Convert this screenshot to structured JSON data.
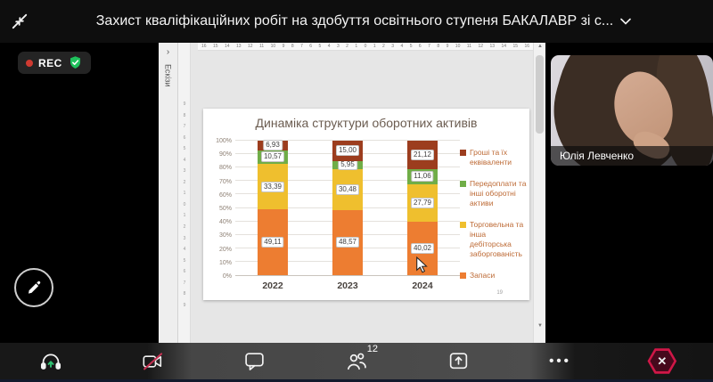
{
  "meeting": {
    "title": "Захист кваліфікаційних робіт на здобуття освітнього ступеня БАКАЛАВР зі с...",
    "rec_label": "REC",
    "participants_count": "12"
  },
  "webcam": {
    "participant_name": "Юлія Левченко"
  },
  "shared_screen": {
    "thumbnails_label": "Ескізи",
    "slide_page_number": "19",
    "ruler_h": [
      "16",
      "15",
      "14",
      "13",
      "12",
      "11",
      "10",
      "9",
      "8",
      "7",
      "6",
      "5",
      "4",
      "3",
      "2",
      "1",
      "0",
      "1",
      "2",
      "3",
      "4",
      "5",
      "6",
      "7",
      "8",
      "9",
      "10",
      "11",
      "12",
      "13",
      "14",
      "15",
      "16"
    ],
    "ruler_v": [
      "9",
      "8",
      "7",
      "6",
      "5",
      "4",
      "3",
      "2",
      "1",
      "0",
      "1",
      "2",
      "3",
      "4",
      "5",
      "6",
      "7",
      "8",
      "9"
    ]
  },
  "icons": {
    "panel_expand": "›",
    "scroll_up": "▲",
    "scroll_down": "▼",
    "more_dots": "•••",
    "close_x": "✕"
  },
  "chart_data": {
    "type": "bar",
    "stacked": true,
    "title": "Динаміка структури оборотних активів",
    "categories": [
      "2022",
      "2023",
      "2024"
    ],
    "series": [
      {
        "name": "Запаси",
        "color": "#ED7D31",
        "values": [
          49.11,
          48.57,
          40.02
        ]
      },
      {
        "name": "Торговельна та інша дебіторська заборгованість",
        "color": "#EFBF2E",
        "values": [
          33.39,
          30.48,
          27.79
        ]
      },
      {
        "name": "Передоплати та інші оборотні активи",
        "color": "#70AD47",
        "values": [
          10.57,
          5.95,
          11.06
        ]
      },
      {
        "name": "Гроші та їх еквіваленти",
        "color": "#9C3D1E",
        "values": [
          6.93,
          15.0,
          21.12
        ]
      }
    ],
    "legend_order": [
      3,
      2,
      1,
      0
    ],
    "y_ticks": [
      "0%",
      "10%",
      "20%",
      "30%",
      "40%",
      "50%",
      "60%",
      "70%",
      "80%",
      "90%",
      "100%"
    ],
    "ylim": [
      0,
      100
    ],
    "xlabel": "",
    "ylabel": "",
    "grid": true,
    "legend_position": "right",
    "data_label_decimal": "comma"
  }
}
